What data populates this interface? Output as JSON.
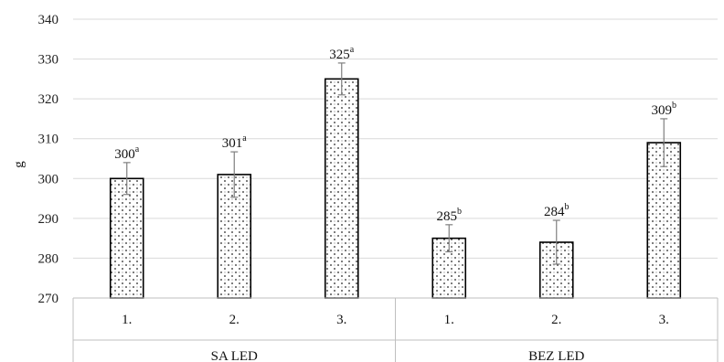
{
  "chart_data": {
    "type": "bar",
    "ylabel": "g",
    "ylim": [
      270,
      340
    ],
    "yticks": [
      270,
      280,
      290,
      300,
      310,
      320,
      330,
      340
    ],
    "grid": true,
    "groups": [
      {
        "label": "SA LED",
        "bars": [
          {
            "label": "1.",
            "value": 300,
            "error": 4,
            "annotation": "300",
            "letter": "a"
          },
          {
            "label": "2.",
            "value": 301,
            "error": 5.7,
            "annotation": "301",
            "letter": "a"
          },
          {
            "label": "3.",
            "value": 325,
            "error": 4,
            "annotation": "325",
            "letter": "a"
          }
        ]
      },
      {
        "label": "BEZ LED",
        "bars": [
          {
            "label": "1.",
            "value": 285,
            "error": 3.4,
            "annotation": "285",
            "letter": "b"
          },
          {
            "label": "2.",
            "value": 284,
            "error": 5.5,
            "annotation": "284",
            "letter": "b"
          },
          {
            "label": "3.",
            "value": 309,
            "error": 6,
            "annotation": "309",
            "letter": "b"
          }
        ]
      }
    ]
  }
}
